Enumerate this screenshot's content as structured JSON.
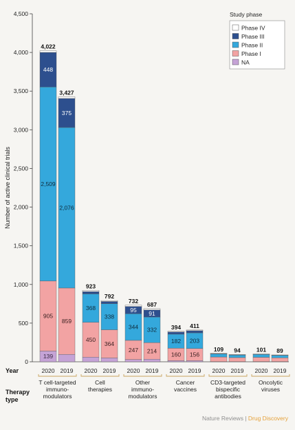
{
  "chart_data": {
    "type": "bar",
    "stacked": true,
    "ylabel": "Number of active clinical trials",
    "ylim": [
      0,
      4500
    ],
    "yticks": [
      0,
      500,
      1000,
      1500,
      2000,
      2500,
      3000,
      3500,
      4000,
      4500
    ],
    "ytick_labels": [
      "0",
      "500",
      "1,000",
      "1,500",
      "2,000",
      "2,500",
      "3,000",
      "3,500",
      "4,000",
      "4,500"
    ],
    "grid": false,
    "year_row_label": "Year",
    "type_row_label": "Therapy type",
    "legend": {
      "title": "Study phase",
      "placement": "top-right",
      "items": [
        {
          "key": "phase4",
          "label": "Phase IV",
          "color": "#ffffff"
        },
        {
          "key": "phase3",
          "label": "Phase III",
          "color": "#2d4f8e"
        },
        {
          "key": "phase2",
          "label": "Phase II",
          "color": "#34a8dc"
        },
        {
          "key": "phase1",
          "label": "Phase I",
          "color": "#f2a3a3"
        },
        {
          "key": "na",
          "label": "NA",
          "color": "#c5a3d6"
        }
      ]
    },
    "groups": [
      {
        "label": "T cell-targeted immuno- modulators",
        "label_lines": [
          "T cell-targeted",
          "immuno-",
          "modulators"
        ],
        "bars": [
          {
            "year": "2020",
            "total": 4022,
            "total_label": "4,022",
            "na": 139,
            "phase1": 905,
            "phase2": 2509,
            "phase3": 448,
            "phase4": 21,
            "labels": {
              "na": "139",
              "phase1": "905",
              "phase2": "2,509",
              "phase3": "448"
            }
          },
          {
            "year": "2019",
            "total": 3427,
            "total_label": "3,427",
            "na": 95,
            "phase1": 859,
            "phase2": 2076,
            "phase3": 375,
            "phase4": 22,
            "labels": {
              "phase1": "859",
              "phase2": "2,076",
              "phase3": "375"
            }
          }
        ]
      },
      {
        "label": "Cell therapies",
        "label_lines": [
          "Cell",
          "therapies"
        ],
        "bars": [
          {
            "year": "2020",
            "total": 923,
            "total_label": "923",
            "na": 60,
            "phase1": 450,
            "phase2": 368,
            "phase3": 30,
            "phase4": 15,
            "labels": {
              "phase1": "450",
              "phase2": "368"
            }
          },
          {
            "year": "2019",
            "total": 792,
            "total_label": "792",
            "na": 50,
            "phase1": 364,
            "phase2": 338,
            "phase3": 28,
            "phase4": 12,
            "labels": {
              "phase1": "364",
              "phase2": "338"
            }
          }
        ]
      },
      {
        "label": "Other immuno- modulators",
        "label_lines": [
          "Other",
          "immuno-",
          "modulators"
        ],
        "bars": [
          {
            "year": "2020",
            "total": 732,
            "total_label": "732",
            "na": 30,
            "phase1": 247,
            "phase2": 344,
            "phase3": 95,
            "phase4": 16,
            "labels": {
              "phase1": "247",
              "phase2": "344",
              "phase3": "95"
            }
          },
          {
            "year": "2019",
            "total": 687,
            "total_label": "687",
            "na": 33,
            "phase1": 214,
            "phase2": 332,
            "phase3": 91,
            "phase4": 17,
            "labels": {
              "phase1": "214",
              "phase2": "332",
              "phase3": "91"
            }
          }
        ]
      },
      {
        "label": "Cancer vaccines",
        "label_lines": [
          "Cancer",
          "vaccines"
        ],
        "bars": [
          {
            "year": "2020",
            "total": 394,
            "total_label": "394",
            "na": 15,
            "phase1": 160,
            "phase2": 182,
            "phase3": 28,
            "phase4": 9,
            "labels": {
              "phase1": "160",
              "phase2": "182"
            }
          },
          {
            "year": "2019",
            "total": 411,
            "total_label": "411",
            "na": 15,
            "phase1": 156,
            "phase2": 203,
            "phase3": 28,
            "phase4": 9,
            "labels": {
              "phase1": "156",
              "phase2": "203"
            }
          }
        ]
      },
      {
        "label": "CD3-targeted bispecific antibodies",
        "label_lines": [
          "CD3-targeted",
          "bispecific",
          "antibodies"
        ],
        "bars": [
          {
            "year": "2020",
            "total": 109,
            "total_label": "109",
            "na": 2,
            "phase1": 60,
            "phase2": 40,
            "phase3": 5,
            "phase4": 2,
            "labels": {}
          },
          {
            "year": "2019",
            "total": 94,
            "total_label": "94",
            "na": 2,
            "phase1": 52,
            "phase2": 34,
            "phase3": 4,
            "phase4": 2,
            "labels": {}
          }
        ]
      },
      {
        "label": "Oncolytic viruses",
        "label_lines": [
          "Oncolytic",
          "viruses"
        ],
        "bars": [
          {
            "year": "2020",
            "total": 101,
            "total_label": "101",
            "na": 3,
            "phase1": 55,
            "phase2": 38,
            "phase3": 3,
            "phase4": 2,
            "labels": {}
          },
          {
            "year": "2019",
            "total": 89,
            "total_label": "89",
            "na": 3,
            "phase1": 48,
            "phase2": 33,
            "phase3": 3,
            "phase4": 2,
            "labels": {}
          }
        ]
      }
    ]
  },
  "credit": {
    "left": "Nature Reviews",
    "sep": " | ",
    "right": "Drug Discovery"
  }
}
